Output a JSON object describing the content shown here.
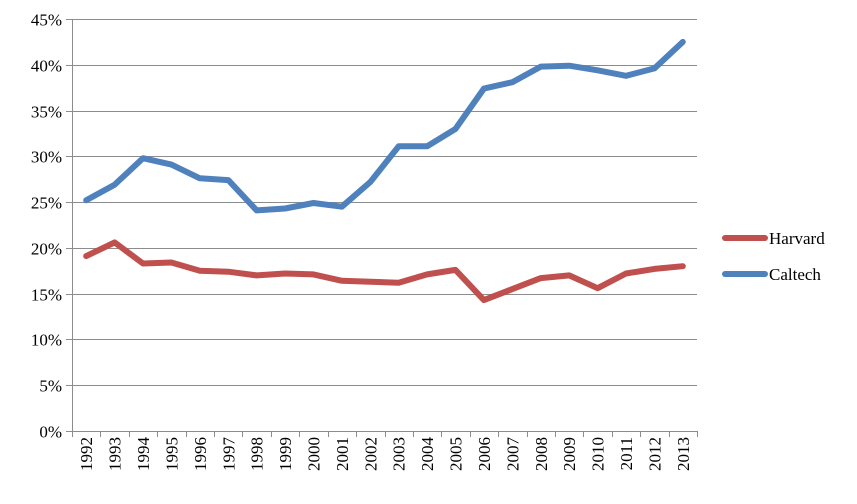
{
  "chart_data": {
    "type": "line",
    "title": "",
    "xlabel": "",
    "ylabel": "",
    "x": [
      "1992",
      "1993",
      "1994",
      "1995",
      "1996",
      "1997",
      "1998",
      "1999",
      "2000",
      "2001",
      "2002",
      "2003",
      "2004",
      "2005",
      "2006",
      "2007",
      "2008",
      "2009",
      "2010",
      "2011",
      "2012",
      "2013"
    ],
    "yticks": [
      "0%",
      "5%",
      "10%",
      "15%",
      "20%",
      "25%",
      "30%",
      "35%",
      "40%",
      "45%"
    ],
    "ylim": [
      0,
      45
    ],
    "grid": true,
    "legend_position": "right",
    "series": [
      {
        "name": "Harvard",
        "color": "#c0504d",
        "values": [
          19.1,
          20.6,
          18.3,
          18.4,
          17.5,
          17.4,
          17.0,
          17.2,
          17.1,
          16.4,
          16.3,
          16.2,
          17.1,
          17.6,
          14.3,
          15.5,
          16.7,
          17.0,
          15.6,
          17.2,
          17.7,
          18.0
        ]
      },
      {
        "name": "Caltech",
        "color": "#4f81bd",
        "values": [
          25.2,
          26.9,
          29.8,
          29.1,
          27.6,
          27.4,
          24.1,
          24.3,
          24.9,
          24.5,
          27.2,
          31.1,
          31.1,
          33.0,
          37.4,
          38.1,
          39.8,
          39.9,
          39.4,
          38.8,
          39.6,
          42.5
        ]
      }
    ]
  }
}
